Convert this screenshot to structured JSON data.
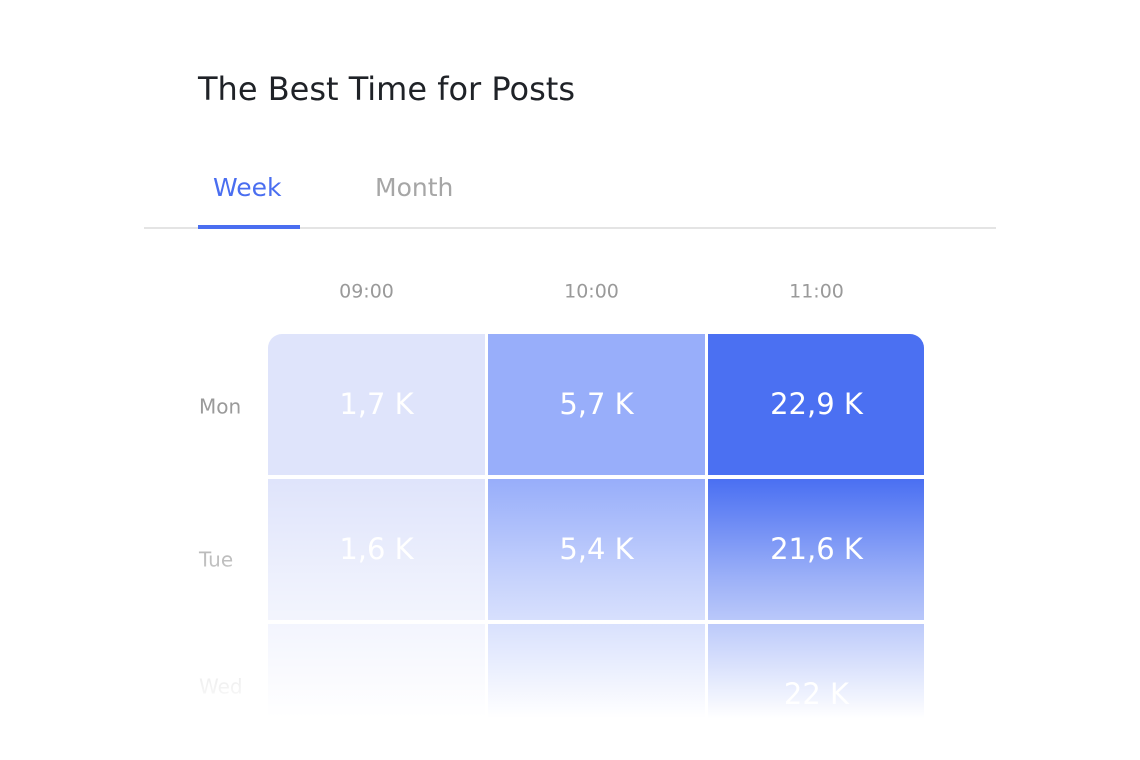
{
  "title": "The Best Time for Posts",
  "tabs": [
    {
      "label": "Week",
      "active": true
    },
    {
      "label": "Month",
      "active": false
    }
  ],
  "columns": [
    "09:00",
    "10:00",
    "11:00"
  ],
  "rows": [
    {
      "label": "Mon",
      "cells": [
        "1,7 K",
        "5,7 K",
        "22,9 K"
      ]
    },
    {
      "label": "Tue",
      "cells": [
        "1,6 K",
        "5,4 K",
        "21,6 K"
      ]
    },
    {
      "label": "Wed",
      "cells": [
        null,
        null,
        "22 K"
      ]
    }
  ]
}
